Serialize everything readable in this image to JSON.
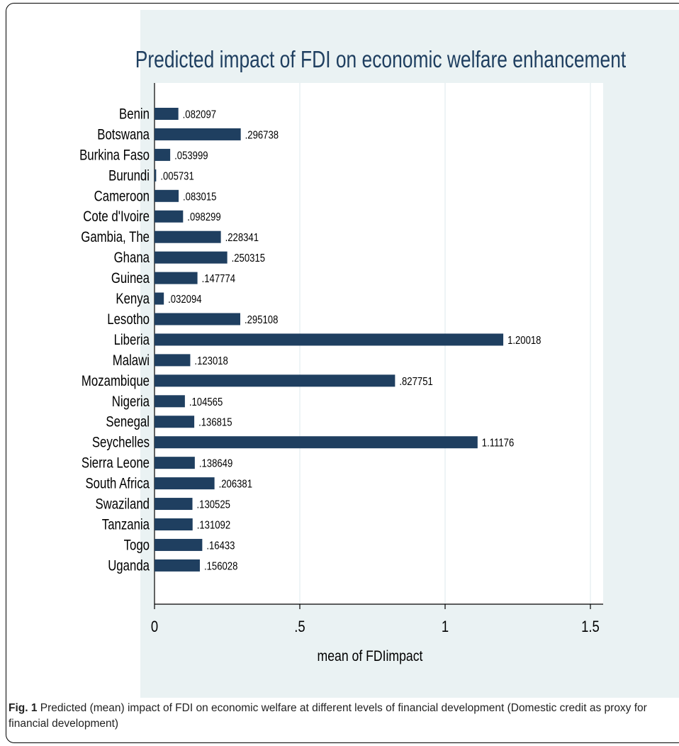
{
  "chart_data": {
    "type": "bar",
    "orientation": "horizontal",
    "title": "Predicted impact of FDI on economic welfare enhancement",
    "xlabel": "mean of FDIimpact",
    "ylabel": "",
    "xlim": [
      0,
      1.55
    ],
    "xticks": [
      0,
      0.5,
      1,
      1.5
    ],
    "xtick_labels": [
      "0",
      ".5",
      "1",
      "1.5"
    ],
    "grid": true,
    "categories": [
      "Benin",
      "Botswana",
      "Burkina Faso",
      "Burundi",
      "Cameroon",
      "Cote d'Ivoire",
      "Gambia, The",
      "Ghana",
      "Guinea",
      "Kenya",
      "Lesotho",
      "Liberia",
      "Malawi",
      "Mozambique",
      "Nigeria",
      "Senegal",
      "Seychelles",
      "Sierra Leone",
      "South Africa",
      "Swaziland",
      "Tanzania",
      "Togo",
      "Uganda"
    ],
    "values": [
      0.082097,
      0.296738,
      0.053999,
      0.005731,
      0.083015,
      0.098299,
      0.228341,
      0.250315,
      0.147774,
      0.032094,
      0.295108,
      1.20018,
      0.123018,
      0.827751,
      0.104565,
      0.136815,
      1.11176,
      0.138649,
      0.206381,
      0.130525,
      0.131092,
      0.16433,
      0.156028
    ],
    "value_labels": [
      ".082097",
      ".296738",
      ".053999",
      ".005731",
      ".083015",
      ".098299",
      ".228341",
      ".250315",
      ".147774",
      ".032094",
      ".295108",
      "1.20018",
      ".123018",
      ".827751",
      ".104565",
      ".136815",
      "1.11176",
      ".138649",
      ".206381",
      ".130525",
      ".131092",
      ".16433",
      ".156028"
    ],
    "colors": {
      "bar": "#1f3f60",
      "panel": "#eaf2f3",
      "plot": "#ffffff",
      "grid": "#eaf2f3"
    }
  },
  "caption": {
    "label": "Fig. 1",
    "text": "Predicted (mean) impact of FDI on economic welfare at different levels of financial development (Domestic credit as proxy for financial development)"
  }
}
